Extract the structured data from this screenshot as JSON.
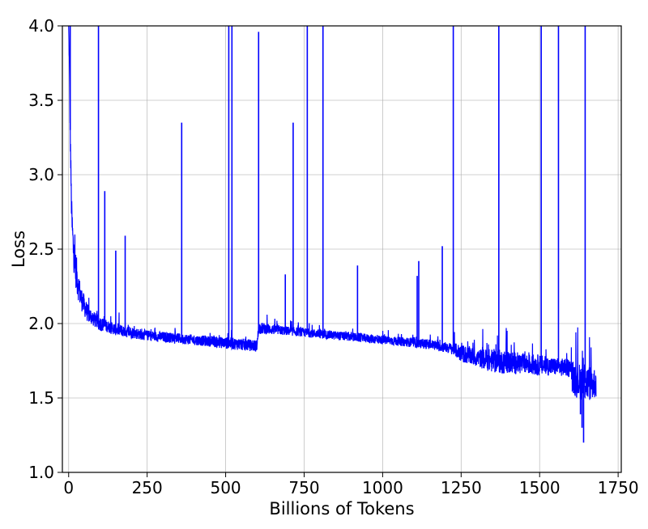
{
  "chart_data": {
    "type": "line",
    "title": "",
    "xlabel": "Billions of Tokens",
    "ylabel": "Loss",
    "xlim": [
      -20,
      1760
    ],
    "ylim": [
      1.0,
      4.0
    ],
    "x_ticks": [
      0,
      250,
      500,
      750,
      1000,
      1250,
      1500,
      1750
    ],
    "y_ticks": [
      1.0,
      1.5,
      2.0,
      2.5,
      3.0,
      3.5,
      4.0
    ],
    "x_tick_labels": [
      "0",
      "250",
      "500",
      "750",
      "1000",
      "1250",
      "1500",
      "1750"
    ],
    "y_tick_labels": [
      "1.0",
      "1.5",
      "2.0",
      "2.5",
      "3.0",
      "3.5",
      "4.0"
    ],
    "grid": true,
    "line_color": "#0000ff",
    "series": [
      {
        "x": [
          0,
          2,
          5,
          8,
          10,
          15,
          20,
          25,
          30,
          40,
          50,
          60,
          80,
          100,
          125,
          150,
          200,
          250,
          300,
          350,
          400,
          450,
          500,
          550,
          600,
          605,
          650,
          700,
          750,
          800,
          850,
          900,
          950,
          1000,
          1050,
          1100,
          1150,
          1200,
          1225,
          1250,
          1300,
          1350,
          1400,
          1450,
          1500,
          1550,
          1600,
          1605,
          1620,
          1640,
          1660,
          1680
        ],
        "y": [
          4.0,
          3.8,
          3.3,
          2.9,
          2.7,
          2.5,
          2.4,
          2.33,
          2.26,
          2.17,
          2.12,
          2.07,
          2.03,
          2.0,
          1.98,
          1.96,
          1.94,
          1.92,
          1.91,
          1.9,
          1.89,
          1.88,
          1.87,
          1.86,
          1.85,
          1.97,
          1.96,
          1.95,
          1.94,
          1.93,
          1.92,
          1.91,
          1.9,
          1.89,
          1.88,
          1.87,
          1.86,
          1.84,
          1.83,
          1.8,
          1.77,
          1.75,
          1.74,
          1.73,
          1.72,
          1.71,
          1.7,
          1.63,
          1.62,
          1.6,
          1.6,
          1.6
        ],
        "noise": [
          0,
          0.05,
          0.1,
          0.1,
          0.12,
          0.12,
          0.12,
          0.12,
          0.1,
          0.08,
          0.07,
          0.06,
          0.05,
          0.05,
          0.04,
          0.04,
          0.04,
          0.035,
          0.035,
          0.035,
          0.035,
          0.035,
          0.04,
          0.04,
          0.04,
          0.04,
          0.035,
          0.03,
          0.03,
          0.03,
          0.03,
          0.03,
          0.03,
          0.03,
          0.03,
          0.03,
          0.035,
          0.035,
          0.04,
          0.06,
          0.06,
          0.08,
          0.08,
          0.07,
          0.07,
          0.06,
          0.06,
          0.12,
          0.12,
          0.12,
          0.12,
          0.1
        ]
      }
    ],
    "spikes": [
      {
        "x": 5,
        "y": 4.0
      },
      {
        "x": 95,
        "y": 4.0
      },
      {
        "x": 115,
        "y": 2.89
      },
      {
        "x": 150,
        "y": 2.49
      },
      {
        "x": 180,
        "y": 2.59
      },
      {
        "x": 360,
        "y": 3.35
      },
      {
        "x": 510,
        "y": 4.0
      },
      {
        "x": 520,
        "y": 4.0
      },
      {
        "x": 605,
        "y": 3.96
      },
      {
        "x": 690,
        "y": 2.33
      },
      {
        "x": 715,
        "y": 3.35
      },
      {
        "x": 760,
        "y": 4.0
      },
      {
        "x": 810,
        "y": 4.0
      },
      {
        "x": 920,
        "y": 2.39
      },
      {
        "x": 1110,
        "y": 2.32
      },
      {
        "x": 1115,
        "y": 2.42
      },
      {
        "x": 1190,
        "y": 2.52
      },
      {
        "x": 1225,
        "y": 4.0
      },
      {
        "x": 1370,
        "y": 4.0
      },
      {
        "x": 1505,
        "y": 4.0
      },
      {
        "x": 1560,
        "y": 4.0
      },
      {
        "x": 1645,
        "y": 4.0
      }
    ],
    "dips": [
      {
        "x": 1640,
        "y": 1.2
      },
      {
        "x": 1635,
        "y": 1.3
      },
      {
        "x": 1630,
        "y": 1.39
      }
    ]
  }
}
